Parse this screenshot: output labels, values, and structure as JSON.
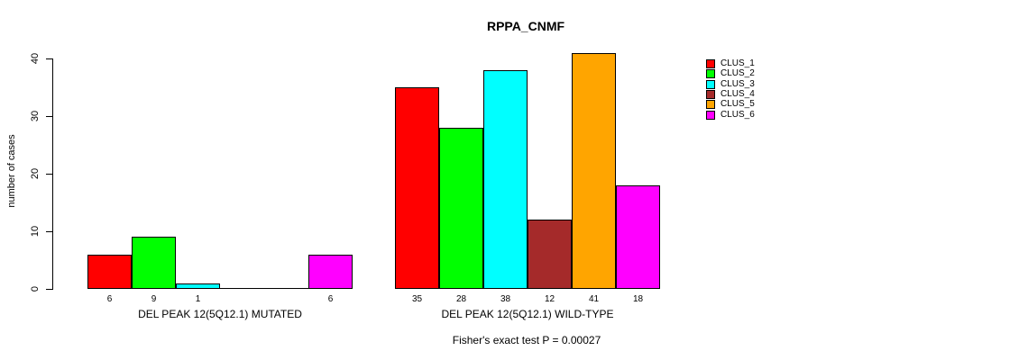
{
  "chart_data": {
    "type": "bar",
    "title": "RPPA_CNMF",
    "ylabel": "number of cases",
    "xlabel": "",
    "ylim": [
      0,
      40
    ],
    "yticks": [
      0,
      10,
      20,
      30,
      40
    ],
    "grid": false,
    "legend_position": "right",
    "legend": [
      {
        "label": "CLUS_1",
        "color": "#FF0000"
      },
      {
        "label": "CLUS_2",
        "color": "#00FF00"
      },
      {
        "label": "CLUS_3",
        "color": "#00FFFF"
      },
      {
        "label": "CLUS_4",
        "color": "#A52A2A"
      },
      {
        "label": "CLUS_5",
        "color": "#FFA500"
      },
      {
        "label": "CLUS_6",
        "color": "#FF00FF"
      }
    ],
    "series_colors": [
      "#FF0000",
      "#00FF00",
      "#00FFFF",
      "#A52A2A",
      "#FFA500",
      "#FF00FF"
    ],
    "groups": [
      {
        "label": "DEL PEAK 12(5Q12.1) MUTATED",
        "values": [
          6,
          9,
          1,
          0,
          0,
          6
        ]
      },
      {
        "label": "DEL PEAK 12(5Q12.1) WILD-TYPE",
        "values": [
          35,
          28,
          38,
          12,
          41,
          18
        ]
      }
    ],
    "annotation": "Fisher's exact test P = 0.00027",
    "axis_color": "#000000",
    "bar_border_color": "#000000",
    "background_color": "#FFFFFF"
  }
}
